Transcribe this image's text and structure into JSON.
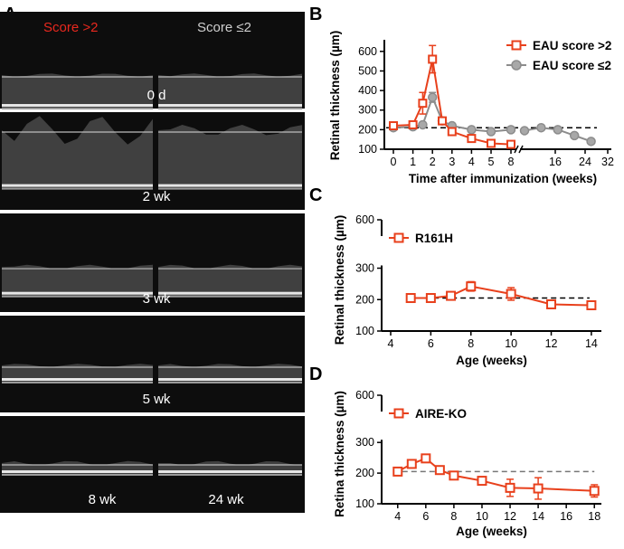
{
  "panel_a": {
    "letter": "A",
    "header_left": "Score >2",
    "header_right": "Score ≤2",
    "header_left_color": "#e8281e",
    "header_right_color": "#cfcfcf",
    "rows": [
      {
        "label": "0 d",
        "label_right": ""
      },
      {
        "label": "2 wk",
        "label_right": ""
      },
      {
        "label": "3 wk",
        "label_right": ""
      },
      {
        "label": "5 wk",
        "label_right": ""
      },
      {
        "label": "8 wk",
        "label_right": "24 wk"
      }
    ]
  },
  "colors": {
    "red": "#e8401c",
    "gray": "#8c8c8c",
    "gray_fill": "#a8a8a8",
    "reference_line": "#000000",
    "reference_line_d": "#777777"
  },
  "chart_data": [
    {
      "panel": "B",
      "type": "line",
      "xlabel": "Time after immunization (weeks)",
      "ylabel": "Retinal thickness (µm)",
      "ylim": [
        100,
        650
      ],
      "yticks": [
        100,
        200,
        300,
        400,
        500,
        600
      ],
      "xtick_labels": [
        "0",
        "1",
        "2",
        "3",
        "4",
        "5",
        "8",
        "16",
        "24",
        "32"
      ],
      "x_axis_break": true,
      "reference_line": 210,
      "legend_position": "top-right",
      "series": [
        {
          "name": "EAU score >2",
          "marker": "open-square",
          "x": [
            0,
            1,
            1.5,
            2,
            2.5,
            3,
            4,
            5,
            8
          ],
          "y": [
            220,
            225,
            335,
            560,
            245,
            190,
            155,
            130,
            125
          ],
          "err": [
            10,
            12,
            55,
            70,
            12,
            10,
            15,
            15,
            15
          ]
        },
        {
          "name": "EAU score ≤2",
          "marker": "filled-circle",
          "x": [
            0,
            1,
            1.5,
            2,
            2.5,
            3,
            4,
            5,
            8,
            12,
            16,
            20,
            24,
            28
          ],
          "y": [
            210,
            215,
            225,
            365,
            245,
            220,
            200,
            190,
            200,
            195,
            210,
            200,
            170,
            140
          ],
          "err": [
            8,
            8,
            10,
            25,
            12,
            10,
            8,
            8,
            8,
            8,
            8,
            8,
            8,
            8
          ]
        }
      ]
    },
    {
      "panel": "C",
      "type": "line",
      "xlabel": "Age (weeks)",
      "ylabel": "Retinal thickness (µm)",
      "ylim": [
        100,
        600
      ],
      "yticks": [
        100,
        200,
        300,
        600
      ],
      "xticks": [
        4,
        6,
        8,
        10,
        12,
        14
      ],
      "xlim": [
        4,
        14.5
      ],
      "y_axis_break": true,
      "reference_line": 205,
      "legend_position": "top-left",
      "series": [
        {
          "name": "R161H",
          "marker": "open-square",
          "x": [
            5,
            6,
            7,
            8,
            10,
            12,
            14
          ],
          "y": [
            205,
            205,
            212,
            242,
            218,
            185,
            182
          ],
          "err": [
            5,
            5,
            5,
            15,
            20,
            10,
            10
          ]
        }
      ]
    },
    {
      "panel": "D",
      "type": "line",
      "xlabel": "Age (weeks)",
      "ylabel": "Retina thickness (µm)",
      "ylim": [
        100,
        600
      ],
      "yticks": [
        100,
        200,
        300,
        600
      ],
      "xticks": [
        4,
        6,
        8,
        10,
        12,
        14,
        16,
        18
      ],
      "xlim": [
        3.5,
        18.5
      ],
      "y_axis_break": true,
      "reference_line": 205,
      "legend_position": "top-left",
      "series": [
        {
          "name": "AIRE-KO",
          "marker": "open-square",
          "x": [
            4,
            5,
            6,
            7,
            8,
            10,
            12,
            14,
            18
          ],
          "y": [
            205,
            230,
            248,
            210,
            192,
            175,
            152,
            150,
            142
          ],
          "err": [
            5,
            5,
            8,
            5,
            8,
            5,
            28,
            35,
            20
          ]
        }
      ]
    }
  ]
}
